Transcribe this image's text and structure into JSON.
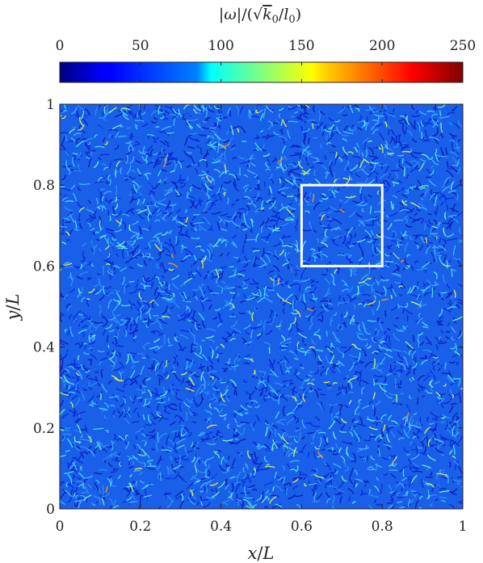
{
  "chart_data": {
    "type": "heatmap",
    "title": "",
    "colorbar": {
      "label": "|ω|/(√k₀/l₀)",
      "label_parts": {
        "bar_open": "|",
        "omega": "ω",
        "bar_close": "|",
        "slash": "/",
        "paren_open": "(",
        "sqrt": "√",
        "k": "k",
        "k_sub": "0",
        "over": "/",
        "l": "l",
        "l_sub": "0",
        "paren_close": ")"
      },
      "range": [
        0,
        250
      ],
      "ticks": [
        "0",
        "50",
        "100",
        "150",
        "200",
        "250"
      ],
      "colormap": "jet",
      "placement": "top"
    },
    "xlabel": "x/L",
    "xlabel_parts": {
      "var": "x",
      "slash": "/",
      "unit": "L"
    },
    "ylabel": "y/L",
    "ylabel_parts": {
      "var": "y",
      "slash": "/",
      "unit": "L"
    },
    "xlim": [
      0,
      1
    ],
    "ylim": [
      0,
      1
    ],
    "xticks": [
      "0",
      "0.2",
      "0.4",
      "0.6",
      "0.8",
      "1"
    ],
    "yticks": [
      "0",
      "0.2",
      "0.4",
      "0.6",
      "0.8",
      "1"
    ],
    "field_description_values": {
      "typical": 45,
      "max": 250
    },
    "highlight_box": {
      "x": [
        0.6,
        0.8
      ],
      "y": [
        0.6,
        0.8
      ],
      "color": "#ffffff"
    },
    "grid": false
  }
}
